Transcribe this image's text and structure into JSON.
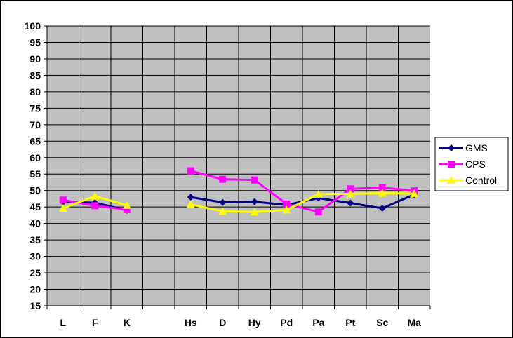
{
  "chart_data": {
    "type": "line",
    "categories": [
      "L",
      "F",
      "K",
      "",
      "Hs",
      "D",
      "Hy",
      "Pd",
      "Pa",
      "Pt",
      "Sc",
      "Ma"
    ],
    "ylim": [
      15,
      100
    ],
    "yticks": [
      15,
      20,
      25,
      30,
      35,
      40,
      45,
      50,
      55,
      60,
      65,
      70,
      75,
      80,
      85,
      90,
      95,
      100
    ],
    "grid": true,
    "plot_background": "#c0c0c0",
    "legend_position": "right",
    "series": [
      {
        "name": "GMS",
        "color": "#000080",
        "marker": "diamond",
        "values": [
          46.5,
          46.3,
          44.0,
          null,
          48.0,
          46.4,
          46.6,
          45.6,
          47.7,
          46.2,
          44.6,
          48.8
        ]
      },
      {
        "name": "CPS",
        "color": "#ff00ff",
        "marker": "square",
        "values": [
          47.1,
          45.4,
          44.2,
          null,
          56.0,
          53.4,
          53.2,
          45.9,
          43.5,
          50.5,
          50.9,
          49.9
        ]
      },
      {
        "name": "Control",
        "color": "#ffff00",
        "marker": "triangle",
        "values": [
          44.6,
          48.3,
          45.5,
          null,
          45.8,
          43.7,
          43.5,
          44.1,
          48.9,
          49.0,
          49.2,
          49.1
        ]
      }
    ]
  }
}
